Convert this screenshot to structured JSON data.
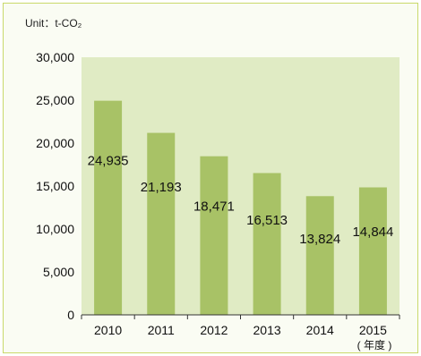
{
  "chart_data": {
    "type": "bar",
    "unit_label": "Unit：t-CO₂",
    "categories": [
      "2010",
      "2011",
      "2012",
      "2013",
      "2014",
      "2015"
    ],
    "values": [
      24935,
      21193,
      18471,
      16513,
      13824,
      14844
    ],
    "value_labels": [
      "24,935",
      "21,193",
      "18,471",
      "16,513",
      "13,824",
      "14,844"
    ],
    "y_ticks": [
      0,
      5000,
      10000,
      15000,
      20000,
      25000,
      30000
    ],
    "y_tick_labels": [
      "0",
      "5,000",
      "10,000",
      "15,000",
      "20,000",
      "25,000",
      "30,000"
    ],
    "ylim": [
      0,
      30000
    ],
    "x_suffix": "( 年度 )",
    "grid": false,
    "colors": {
      "plot_background": "#e0ebc4",
      "bar": "#a8c266",
      "axis": "#333333",
      "frame_border": "#c9d96a"
    }
  }
}
